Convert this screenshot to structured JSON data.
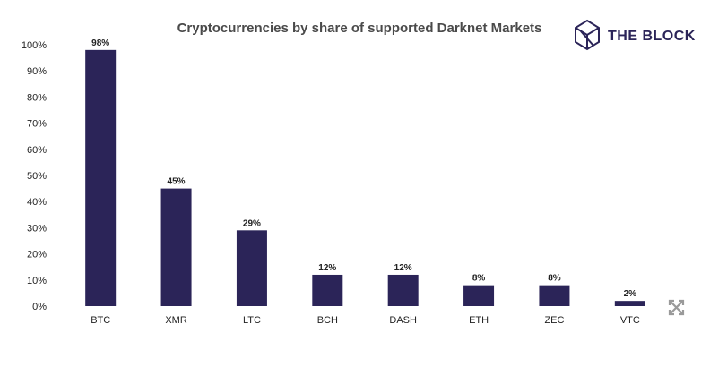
{
  "brand": {
    "name": "THE BLOCK",
    "logo_icon": "cube-logo-icon",
    "color": "#2b2458"
  },
  "chart_data": {
    "type": "bar",
    "title": "Cryptocurrencies by share of supported Darknet Markets",
    "xlabel": "",
    "ylabel": "",
    "categories": [
      "BTC",
      "XMR",
      "LTC",
      "BCH",
      "DASH",
      "ETH",
      "ZEC",
      "VTC"
    ],
    "values": [
      98,
      45,
      29,
      12,
      12,
      8,
      8,
      2
    ],
    "data_labels": [
      "98%",
      "45%",
      "29%",
      "12%",
      "12%",
      "8%",
      "8%",
      "2%"
    ],
    "y_ticks": [
      "0%",
      "10%",
      "20%",
      "30%",
      "40%",
      "50%",
      "60%",
      "70%",
      "80%",
      "90%",
      "100%"
    ],
    "ylim": [
      0,
      100
    ],
    "grid": false,
    "legend": "none",
    "bar_color": "#2b2458"
  },
  "controls": {
    "expand_icon": "expand-arrows-icon"
  }
}
